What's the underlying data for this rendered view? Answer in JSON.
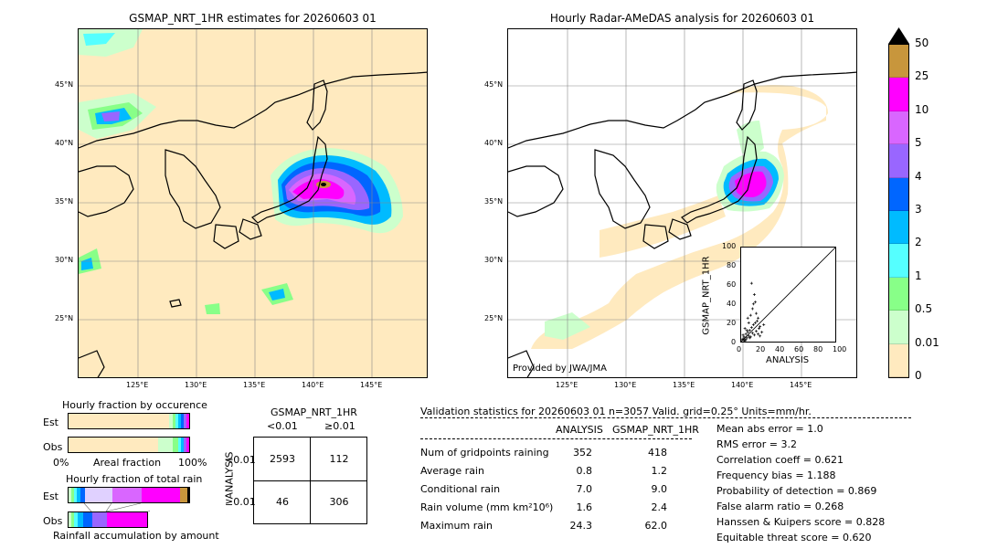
{
  "left_map": {
    "title": "GSMAP_NRT_1HR estimates for 20260603 01",
    "lat_labels": [
      "45°N",
      "40°N",
      "35°N",
      "30°N",
      "25°N"
    ],
    "lon_labels": [
      "125°E",
      "130°E",
      "135°E",
      "140°E",
      "145°E"
    ]
  },
  "right_map": {
    "title": "Hourly Radar-AMeDAS analysis for 20260603 01",
    "lat_labels": [
      "45°N",
      "40°N",
      "35°N",
      "30°N",
      "25°N"
    ],
    "lon_labels": [
      "125°E",
      "130°E",
      "135°E",
      "140°E",
      "145°E"
    ],
    "credit": "Provided by JWA/JMA"
  },
  "colorbar": {
    "labels": [
      "50",
      "25",
      "10",
      "5",
      "4",
      "3",
      "2",
      "1",
      "0.5",
      "0.01",
      "0"
    ],
    "colors": [
      "#c8963c",
      "#ff00ff",
      "#d966ff",
      "#9966ff",
      "#0066ff",
      "#00bbff",
      "#55ffff",
      "#88ff88",
      "#ccffcc",
      "#ffeabf"
    ],
    "over_color": "#000000"
  },
  "scatter": {
    "xlabel": "ANALYSIS",
    "ylabel": "GSMAP_NRT_1HR",
    "ticks": [
      "0",
      "20",
      "40",
      "60",
      "80",
      "100"
    ]
  },
  "fraction_occurrence": {
    "title": "Hourly fraction by occurence",
    "rows": [
      "Est",
      "Obs"
    ],
    "axis_left": "0%",
    "axis_mid": "Areal fraction",
    "axis_right": "100%"
  },
  "fraction_total": {
    "title": "Hourly fraction of total rain",
    "rows": [
      "Est",
      "Obs"
    ],
    "footer": "Rainfall accumulation by amount"
  },
  "contingency": {
    "title": "GSMAP_NRT_1HR",
    "col_labels": [
      "<0.01",
      "≥0.01"
    ],
    "row_axis": "ANALYSIS",
    "row_labels": [
      "<0.01",
      "≥0.01"
    ],
    "cells": [
      [
        "2593",
        "112"
      ],
      [
        "46",
        "306"
      ]
    ]
  },
  "validation": {
    "header": "Validation statistics for 20260603 01  n=3057 Valid. grid=0.25° Units=mm/hr.",
    "col_analysis": "ANALYSIS",
    "col_gsmap": "GSMAP_NRT_1HR",
    "rows": [
      {
        "label": "Num of gridpoints raining",
        "analysis": "352",
        "gsmap": "418"
      },
      {
        "label": "Average rain",
        "analysis": "0.8",
        "gsmap": "1.2"
      },
      {
        "label": "Conditional rain",
        "analysis": "7.0",
        "gsmap": "9.0"
      },
      {
        "label": "Rain volume (mm km²10⁶)",
        "analysis": "1.6",
        "gsmap": "2.4"
      },
      {
        "label": "Maximum rain",
        "analysis": "24.3",
        "gsmap": "62.0"
      }
    ],
    "scores": [
      "Mean abs error =    1.0",
      "RMS error =    3.2",
      "Correlation coeff =  0.621",
      "Frequency bias =  1.188",
      "Probability of detection =  0.869",
      "False alarm ratio =  0.268",
      "Hanssen & Kuipers score =  0.828",
      "Equitable threat score =  0.620"
    ]
  },
  "chart_data": {
    "type": "scatter",
    "xlabel": "ANALYSIS",
    "ylabel": "GSMAP_NRT_1HR",
    "xlim": [
      0,
      100
    ],
    "ylim": [
      0,
      100
    ],
    "points": [
      [
        2,
        3
      ],
      [
        3,
        5
      ],
      [
        4,
        2
      ],
      [
        5,
        8
      ],
      [
        6,
        4
      ],
      [
        7,
        10
      ],
      [
        8,
        6
      ],
      [
        9,
        12
      ],
      [
        10,
        5
      ],
      [
        11,
        15
      ],
      [
        12,
        9
      ],
      [
        13,
        18
      ],
      [
        14,
        7
      ],
      [
        15,
        20
      ],
      [
        16,
        11
      ],
      [
        17,
        22
      ],
      [
        18,
        8
      ],
      [
        19,
        14
      ],
      [
        20,
        6
      ],
      [
        22,
        10
      ],
      [
        3,
        1
      ],
      [
        5,
        2
      ],
      [
        6,
        12
      ],
      [
        8,
        20
      ],
      [
        10,
        28
      ],
      [
        12,
        35
      ],
      [
        13,
        40
      ],
      [
        14,
        50
      ],
      [
        11,
        62
      ],
      [
        15,
        42
      ],
      [
        16,
        30
      ],
      [
        18,
        25
      ],
      [
        20,
        16
      ],
      [
        24,
        18
      ],
      [
        1,
        2
      ],
      [
        2,
        7
      ],
      [
        4,
        14
      ],
      [
        7,
        25
      ],
      [
        9,
        4
      ],
      [
        4,
        1
      ]
    ]
  }
}
